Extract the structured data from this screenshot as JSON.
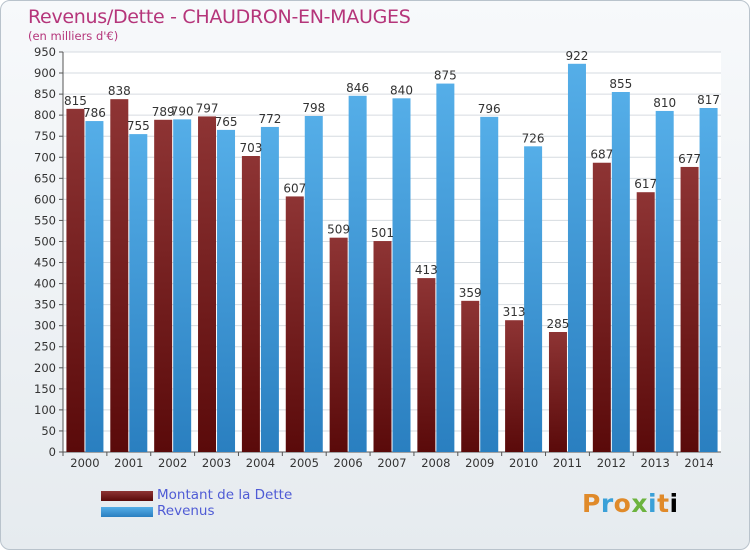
{
  "chart_data": {
    "type": "bar",
    "title": "Revenus/Dette - CHAUDRON-EN-MAUGES",
    "subtitle": "(en milliers d'€)",
    "categories": [
      "2000",
      "2001",
      "2002",
      "2003",
      "2004",
      "2005",
      "2006",
      "2007",
      "2008",
      "2009",
      "2010",
      "2011",
      "2012",
      "2013",
      "2014"
    ],
    "series": [
      {
        "name": "Montant de la Dette",
        "color": "#7a1f1f",
        "values": [
          815,
          838,
          789,
          797,
          703,
          607,
          509,
          501,
          413,
          359,
          313,
          285,
          687,
          617,
          677
        ]
      },
      {
        "name": "Revenus",
        "color": "#3b9ad9",
        "values": [
          786,
          755,
          790,
          765,
          772,
          798,
          846,
          840,
          875,
          796,
          726,
          922,
          855,
          810,
          817
        ]
      }
    ],
    "ylim": [
      0,
      950
    ],
    "yticks": [
      0,
      50,
      100,
      150,
      200,
      250,
      300,
      350,
      400,
      450,
      500,
      550,
      600,
      650,
      700,
      750,
      800,
      850,
      900,
      950
    ],
    "grid": true,
    "legend": "bottom-left"
  },
  "logo": {
    "letters": [
      "P",
      "r",
      "o",
      "x",
      "i",
      "t",
      "i"
    ]
  }
}
